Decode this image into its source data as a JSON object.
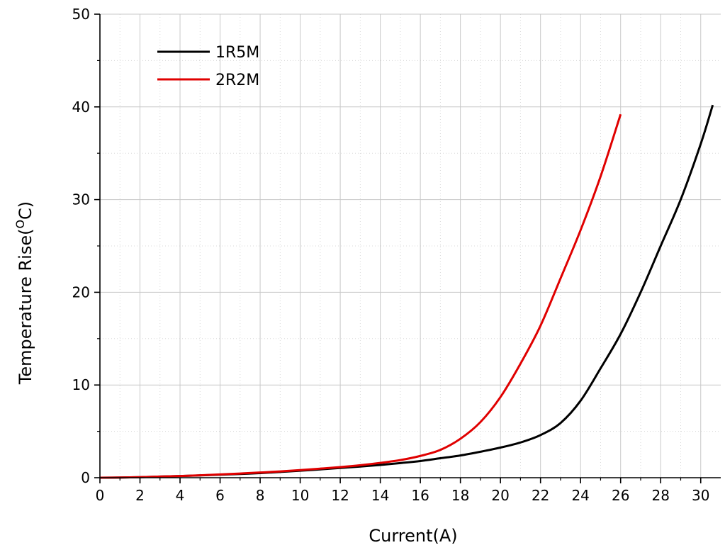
{
  "chart_data": {
    "type": "line",
    "title": "",
    "xlabel": "Current(A)",
    "ylabel_main": "Temperature Rise(",
    "ylabel_sup": "O",
    "ylabel_tail": "C)",
    "xlim": [
      0,
      31
    ],
    "ylim": [
      0,
      50
    ],
    "x_ticks": [
      0,
      2,
      4,
      6,
      8,
      10,
      12,
      14,
      16,
      18,
      20,
      22,
      24,
      26,
      28,
      30
    ],
    "y_ticks": [
      0,
      10,
      20,
      30,
      40,
      50
    ],
    "grid": true,
    "legend_position": "top-left",
    "series": [
      {
        "name": "1R5M",
        "color": "#000000",
        "x": [
          0,
          1,
          2,
          3,
          4,
          5,
          6,
          7,
          8,
          9,
          10,
          11,
          12,
          13,
          14,
          15,
          16,
          17,
          18,
          19,
          20,
          21,
          22,
          23,
          24,
          25,
          26,
          27,
          28,
          29,
          30,
          30.6
        ],
        "y": [
          0,
          0.02,
          0.06,
          0.12,
          0.18,
          0.25,
          0.32,
          0.4,
          0.5,
          0.62,
          0.75,
          0.9,
          1.05,
          1.2,
          1.38,
          1.58,
          1.8,
          2.1,
          2.4,
          2.8,
          3.25,
          3.8,
          4.6,
          5.9,
          8.3,
          11.8,
          15.5,
          20.0,
          25.0,
          30.0,
          36.0,
          40.2
        ]
      },
      {
        "name": "2R2M",
        "color": "#e00000",
        "x": [
          0,
          1,
          2,
          3,
          4,
          5,
          6,
          7,
          8,
          9,
          10,
          11,
          12,
          13,
          14,
          15,
          16,
          17,
          18,
          19,
          20,
          21,
          22,
          23,
          24,
          25,
          26
        ],
        "y": [
          0,
          0.02,
          0.06,
          0.12,
          0.18,
          0.26,
          0.35,
          0.45,
          0.56,
          0.68,
          0.82,
          0.98,
          1.15,
          1.35,
          1.6,
          1.9,
          2.35,
          3.0,
          4.2,
          6.0,
          8.7,
          12.3,
          16.4,
          21.5,
          26.7,
          32.5,
          39.2
        ]
      }
    ]
  }
}
